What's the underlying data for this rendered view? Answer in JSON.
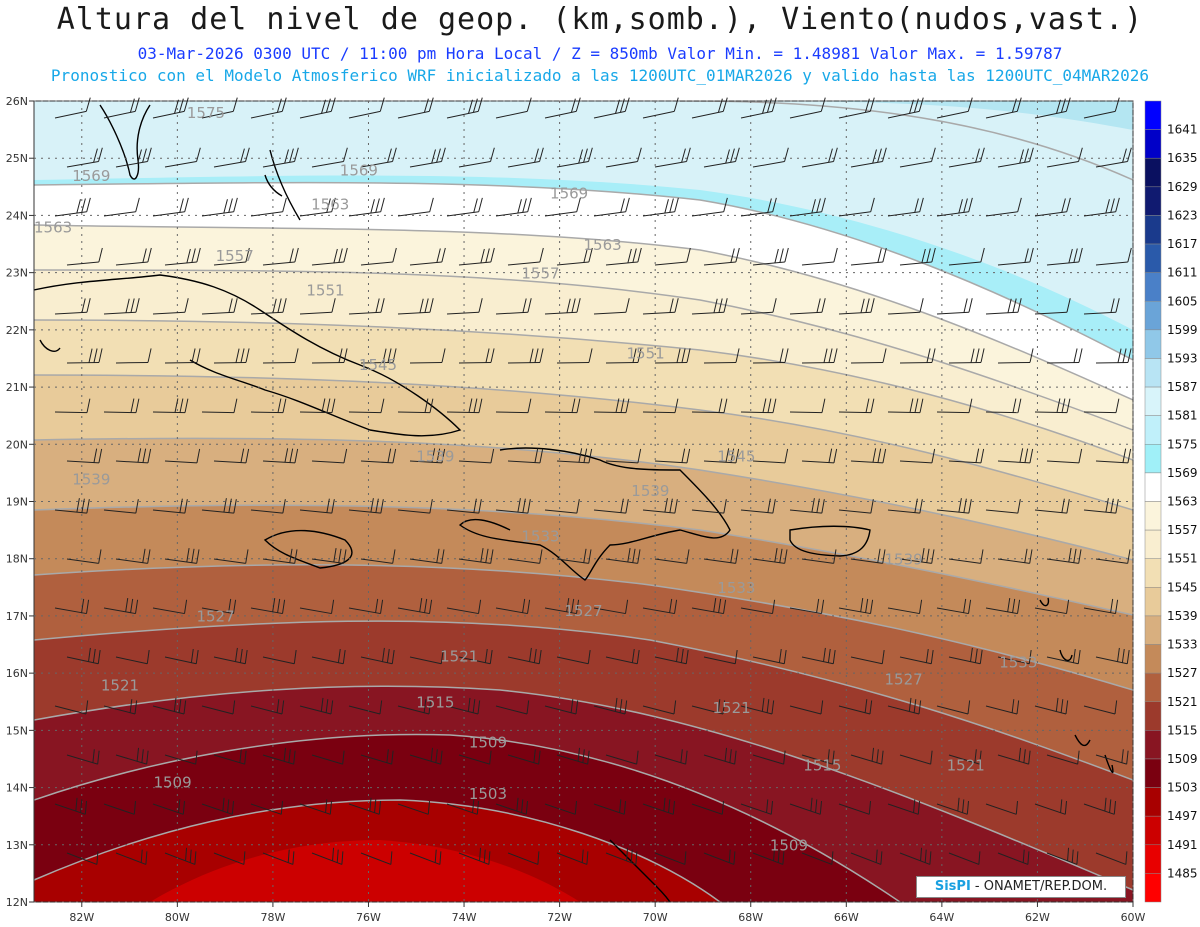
{
  "header": {
    "title": "Altura del nivel de geop. (km,somb.), Viento(nudos,vast.)",
    "subtitle_line1": "03-Mar-2026  0300 UTC / 11:00 pm Hora Local / Z = 850mb    Valor Min. = 1.48981   Valor Max. = 1.59787",
    "subtitle_line2": "Pronostico con el Modelo Atmosferico WRF inicializado a las 1200UTC_01MAR2026 y valido hasta las  1200UTC_04MAR2026"
  },
  "map": {
    "lon_range": [
      -83,
      -60
    ],
    "lat_range": [
      12,
      26
    ],
    "lon_ticks": [
      "82W",
      "80W",
      "78W",
      "76W",
      "74W",
      "72W",
      "70W",
      "68W",
      "66W",
      "64W",
      "62W",
      "60W"
    ],
    "lat_ticks": [
      "12N",
      "13N",
      "14N",
      "15N",
      "16N",
      "17N",
      "18N",
      "19N",
      "20N",
      "21N",
      "22N",
      "23N",
      "24N",
      "25N",
      "26N"
    ],
    "contour_labels": [
      {
        "text": "1575",
        "lon": -79.8,
        "lat": 25.7
      },
      {
        "text": "1569",
        "lon": -82.2,
        "lat": 24.6
      },
      {
        "text": "1569",
        "lon": -76.6,
        "lat": 24.7
      },
      {
        "text": "1569",
        "lon": -72.2,
        "lat": 24.3
      },
      {
        "text": "1563",
        "lon": -77.2,
        "lat": 24.1
      },
      {
        "text": "1563",
        "lon": -83.0,
        "lat": 23.7
      },
      {
        "text": "1563",
        "lon": -71.5,
        "lat": 23.4
      },
      {
        "text": "1557",
        "lon": -79.2,
        "lat": 23.2
      },
      {
        "text": "1557",
        "lon": -72.8,
        "lat": 22.9
      },
      {
        "text": "1551",
        "lon": -77.3,
        "lat": 22.6
      },
      {
        "text": "1545",
        "lon": -76.2,
        "lat": 21.3
      },
      {
        "text": "1551",
        "lon": -70.6,
        "lat": 21.5
      },
      {
        "text": "1539",
        "lon": -75.0,
        "lat": 19.7
      },
      {
        "text": "1539",
        "lon": -82.2,
        "lat": 19.3
      },
      {
        "text": "1545",
        "lon": -68.7,
        "lat": 19.7
      },
      {
        "text": "1539",
        "lon": -70.5,
        "lat": 19.1
      },
      {
        "text": "1533",
        "lon": -72.8,
        "lat": 18.3
      },
      {
        "text": "1533",
        "lon": -68.7,
        "lat": 17.4
      },
      {
        "text": "1539",
        "lon": -65.2,
        "lat": 17.9
      },
      {
        "text": "1527",
        "lon": -79.6,
        "lat": 16.9
      },
      {
        "text": "1527",
        "lon": -71.9,
        "lat": 17.0
      },
      {
        "text": "1521",
        "lon": -74.5,
        "lat": 16.2
      },
      {
        "text": "1521",
        "lon": -81.6,
        "lat": 15.7
      },
      {
        "text": "1527",
        "lon": -65.2,
        "lat": 15.8
      },
      {
        "text": "1533",
        "lon": -62.8,
        "lat": 16.1
      },
      {
        "text": "1515",
        "lon": -75.0,
        "lat": 15.4
      },
      {
        "text": "1521",
        "lon": -68.8,
        "lat": 15.3
      },
      {
        "text": "1509",
        "lon": -73.9,
        "lat": 14.7
      },
      {
        "text": "1515",
        "lon": -66.9,
        "lat": 14.3
      },
      {
        "text": "1521",
        "lon": -63.9,
        "lat": 14.3
      },
      {
        "text": "1509",
        "lon": -80.5,
        "lat": 14.0
      },
      {
        "text": "1503",
        "lon": -73.9,
        "lat": 13.8
      },
      {
        "text": "1509",
        "lon": -67.6,
        "lat": 12.9
      }
    ]
  },
  "legend": {
    "colors": [
      "#ff0000",
      "#e80000",
      "#cc0000",
      "#a80000",
      "#7a0010",
      "#881522",
      "#9c3a2c",
      "#b0603e",
      "#c48a5a",
      "#d8af7f",
      "#e8cb9a",
      "#f2dfb4",
      "#f9eed0",
      "#fbf4dc",
      "#ffffff",
      "#a0f0f8",
      "#c0f0fa",
      "#d8f4fa",
      "#b8e4f4",
      "#90c8e8",
      "#6aa4d8",
      "#4a80c8",
      "#2a5aaa",
      "#1a3a8c",
      "#101a70",
      "#0a1060",
      "#0000c8",
      "#0000ff"
    ],
    "labels": [
      "1485",
      "1491",
      "1497",
      "1503",
      "1509",
      "1515",
      "1521",
      "1527",
      "1533",
      "1539",
      "1545",
      "1551",
      "1557",
      "1563",
      "1569",
      "1575",
      "1581",
      "1587",
      "1593",
      "1599",
      "1605",
      "1611",
      "1617",
      "1623",
      "1629",
      "1635",
      "1641"
    ]
  },
  "credit": {
    "brand": "SisPI",
    "text": " - ONAMET/REP.DOM."
  }
}
